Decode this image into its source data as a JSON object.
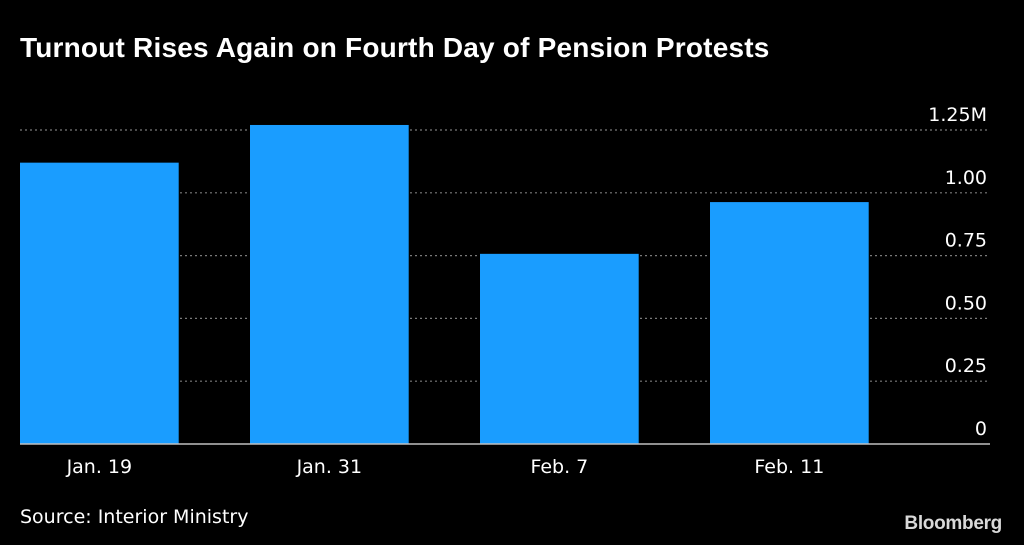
{
  "title": "Turnout Rises Again on Fourth Day of Pension Protests",
  "source": "Source: Interior Ministry",
  "brand": "Bloomberg",
  "colors": {
    "background": "#000000",
    "bar": "#1a9dff",
    "grid": "#7a7a7a",
    "text": "#ffffff"
  },
  "chart_data": {
    "type": "bar",
    "categories": [
      "Jan. 19",
      "Jan. 31",
      "Feb. 7",
      "Feb. 11"
    ],
    "values": [
      1.12,
      1.27,
      0.757,
      0.963
    ],
    "ylim": [
      0,
      1.25
    ],
    "yticks": [
      0,
      0.25,
      0.5,
      0.75,
      1.0,
      1.25
    ],
    "ytick_labels": [
      "0",
      "0.25",
      "0.50",
      "0.75",
      "1.00",
      "1.25M"
    ],
    "y_axis_position": "right",
    "grid": true
  }
}
